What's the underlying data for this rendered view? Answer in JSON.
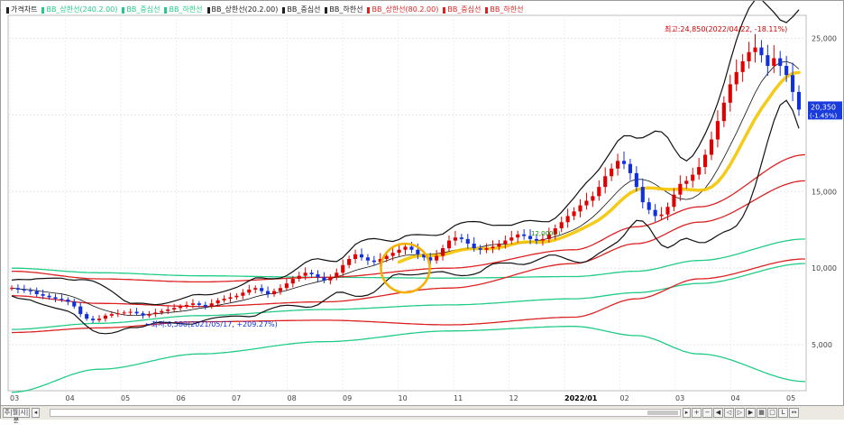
{
  "legend": [
    {
      "label": "가격차트",
      "color": "#222222"
    },
    {
      "label": "BB_상한선(240.2.00)",
      "color": "#22cc88"
    },
    {
      "label": "BB_중심선",
      "color": "#22cc88"
    },
    {
      "label": "BB_하한선",
      "color": "#22cc88"
    },
    {
      "label": "BB_상한선(20.2.00)",
      "color": "#222222"
    },
    {
      "label": "BB_중심선",
      "color": "#222222"
    },
    {
      "label": "BB_하한선",
      "color": "#222222"
    },
    {
      "label": "BB_상한선(80.2.00)",
      "color": "#dd2222"
    },
    {
      "label": "BB_중심선",
      "color": "#dd2222"
    },
    {
      "label": "BB_하한선",
      "color": "#dd2222"
    }
  ],
  "chart_data": {
    "type": "candlestick",
    "x_labels": [
      "03",
      "04",
      "05",
      "06",
      "07",
      "08",
      "09",
      "10",
      "11",
      "12",
      "2022/01",
      "02",
      "03",
      "04",
      "05"
    ],
    "y_ticks": [
      "25,000",
      "20,000",
      "15,000",
      "10,000",
      "5,000"
    ],
    "ylim": [
      2000,
      26500
    ],
    "grid": true,
    "price_box": {
      "price": "20,350",
      "change": "(-1.45%)"
    },
    "annotations": {
      "high": "최고:24,850(2022/04/22, -18.11%)",
      "low": "←최저:6,580(2021/05/17, +209.27%)",
      "mid": "12,000(-)",
      "mid_value": 12000
    },
    "close_series": [
      8700,
      8600,
      8550,
      8500,
      8300,
      8200,
      8100,
      8000,
      7950,
      7800,
      7500,
      7000,
      6700,
      6600,
      6700,
      6900,
      7000,
      7050,
      7100,
      7150,
      7050,
      6900,
      7000,
      7100,
      7200,
      7300,
      7400,
      7500,
      7600,
      7700,
      7600,
      7500,
      7700,
      7900,
      8000,
      8100,
      8200,
      8400,
      8600,
      8700,
      8500,
      8300,
      8500,
      8700,
      9000,
      9300,
      9500,
      9700,
      9600,
      9400,
      9200,
      9400,
      9700,
      10200,
      10600,
      10900,
      10700,
      10500,
      10400,
      10600,
      10800,
      11000,
      11200,
      11400,
      11200,
      10900,
      10700,
      10500,
      10800,
      11300,
      11800,
      12000,
      11900,
      11600,
      11300,
      11200,
      11300,
      11400,
      11600,
      11800,
      12000,
      12200,
      12100,
      11900,
      11800,
      11900,
      12200,
      12600,
      13000,
      13400,
      13700,
      14100,
      14400,
      14700,
      15300,
      16000,
      16500,
      17000,
      16800,
      16200,
      15300,
      14300,
      13800,
      13400,
      13500,
      14000,
      14800,
      15500,
      15700,
      16100,
      16600,
      17400,
      18400,
      19600,
      20800,
      22000,
      22800,
      23500,
      24100,
      24400,
      23900,
      23200,
      23700,
      23200,
      22600,
      21500,
      20350
    ],
    "series": [
      {
        "name": "BB_상한선(240.2.00)",
        "color": "#22cc88",
        "x": [
          0,
          14,
          30,
          50,
          70,
          90,
          100,
          110,
          127
        ],
        "values": [
          10000,
          9700,
          9500,
          9400,
          9350,
          9450,
          9800,
          10500,
          11900
        ]
      },
      {
        "name": "BB_중심선",
        "color": "#22cc88",
        "x": [
          0,
          14,
          30,
          50,
          70,
          90,
          100,
          110,
          127
        ],
        "values": [
          6000,
          6400,
          6900,
          7300,
          7600,
          8000,
          8400,
          9000,
          10300
        ]
      },
      {
        "name": "BB_하한선",
        "color": "#22cc88",
        "x": [
          0,
          14,
          30,
          50,
          70,
          90,
          100,
          110,
          127
        ],
        "values": [
          1900,
          3400,
          4400,
          5200,
          5900,
          6200,
          5600,
          4400,
          2600
        ]
      },
      {
        "name": "BB_상한선(80.2.00)",
        "color": "#dd2222",
        "x": [
          0,
          14,
          30,
          50,
          70,
          90,
          100,
          110,
          127
        ],
        "values": [
          9800,
          9300,
          9100,
          9400,
          10000,
          11200,
          12700,
          14000,
          17400
        ]
      },
      {
        "name": "BB_중심선",
        "color": "#dd2222",
        "x": [
          0,
          14,
          30,
          50,
          70,
          90,
          100,
          110,
          127
        ],
        "values": [
          8200,
          7700,
          7500,
          7800,
          8700,
          10300,
          11600,
          13000,
          15700
        ]
      },
      {
        "name": "BB_하한선",
        "color": "#dd2222",
        "x": [
          0,
          14,
          30,
          50,
          70,
          90,
          100,
          110,
          127
        ],
        "values": [
          5800,
          6100,
          6500,
          6600,
          6300,
          6800,
          8000,
          9300,
          10600
        ]
      }
    ]
  }
}
